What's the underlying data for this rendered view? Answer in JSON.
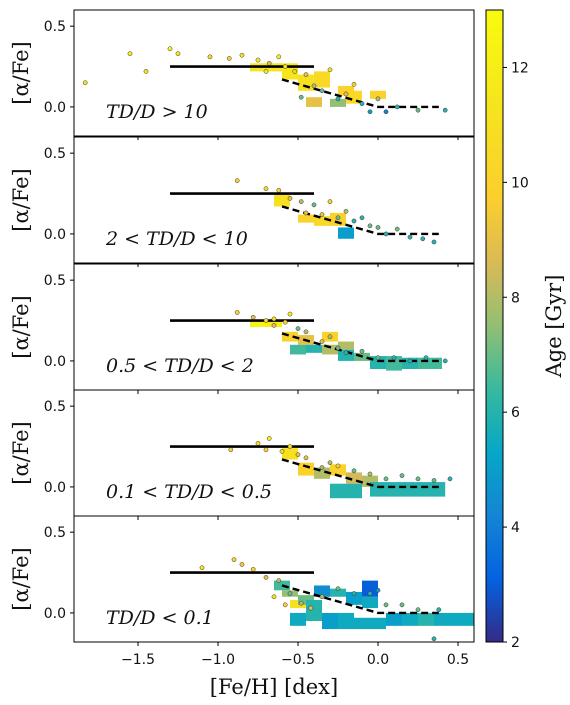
{
  "chart_data": {
    "type": "scatter",
    "xlabel": "[Fe/H] [dex]",
    "ylabel": "[α/Fe]",
    "xlim": [
      -1.9,
      0.6
    ],
    "ylim": [
      -0.18,
      0.6
    ],
    "xticks": [
      -1.5,
      -1.0,
      -0.5,
      0.0,
      0.5
    ],
    "xtick_labels": [
      "−1.5",
      "−1.0",
      "−0.5",
      "0.0",
      "0.5"
    ],
    "yticks": [
      0.0,
      0.5
    ],
    "ytick_labels": [
      "0.0",
      "0.5"
    ],
    "colorbar": {
      "label": "Age [Gyr]",
      "range": [
        2,
        13
      ],
      "ticks": [
        2,
        4,
        6,
        8,
        10,
        12
      ],
      "tick_labels": [
        "2",
        "4",
        "6",
        "8",
        "10",
        "12"
      ],
      "colormap": "parula"
    },
    "reference_lines": {
      "solid": {
        "x": [
          -1.3,
          -0.4
        ],
        "y": [
          0.25,
          0.25
        ]
      },
      "dashed": {
        "x": [
          -0.6,
          0.0,
          0.38
        ],
        "y": [
          0.17,
          0.0,
          0.0
        ]
      }
    },
    "panels": [
      {
        "label": "TD/D > 10",
        "points": [
          [
            -1.83,
            0.15,
            11
          ],
          [
            -1.55,
            0.33,
            12
          ],
          [
            -1.3,
            0.36,
            12.5
          ],
          [
            -1.25,
            0.33,
            11.5
          ],
          [
            -1.45,
            0.22,
            11
          ],
          [
            -1.05,
            0.31,
            10.5
          ],
          [
            -0.93,
            0.3,
            10
          ],
          [
            -0.85,
            0.32,
            11
          ],
          [
            -0.75,
            0.29,
            12
          ],
          [
            -0.68,
            0.27,
            9
          ],
          [
            -0.62,
            0.31,
            12
          ],
          [
            -0.58,
            0.25,
            11
          ],
          [
            -0.52,
            0.22,
            10
          ],
          [
            -0.45,
            0.2,
            9
          ],
          [
            -0.4,
            0.13,
            8
          ],
          [
            -0.35,
            0.1,
            7
          ],
          [
            -0.3,
            0.23,
            11
          ],
          [
            -0.25,
            0.05,
            6
          ],
          [
            -0.2,
            0.08,
            9
          ],
          [
            -0.15,
            0.14,
            10
          ],
          [
            -0.1,
            0.02,
            6
          ],
          [
            -0.05,
            -0.03,
            5
          ],
          [
            0.0,
            0.05,
            8
          ],
          [
            0.05,
            -0.03,
            4
          ],
          [
            0.12,
            0.0,
            6
          ],
          [
            0.25,
            -0.02,
            7
          ],
          [
            0.42,
            -0.02,
            6
          ],
          [
            -0.48,
            0.06,
            7
          ],
          [
            -0.7,
            0.22,
            12
          ]
        ],
        "boxes": [
          [
            -0.8,
            -0.6,
            0.22,
            0.27,
            11.5
          ],
          [
            -0.6,
            -0.5,
            0.17,
            0.27,
            11.5
          ],
          [
            -0.5,
            -0.4,
            0.1,
            0.2,
            11
          ],
          [
            -0.4,
            -0.3,
            0.12,
            0.22,
            10.5
          ],
          [
            -0.25,
            -0.15,
            0.07,
            0.13,
            10
          ],
          [
            -0.45,
            -0.35,
            0.0,
            0.06,
            9
          ],
          [
            -0.2,
            -0.1,
            0.02,
            0.1,
            10.5
          ],
          [
            -0.05,
            0.05,
            0.05,
            0.1,
            10
          ],
          [
            -0.3,
            -0.2,
            0.0,
            0.05,
            7.5
          ]
        ]
      },
      {
        "label": "2 < TD/D < 10",
        "points": [
          [
            -0.88,
            0.33,
            10
          ],
          [
            -0.7,
            0.28,
            10.5
          ],
          [
            -0.62,
            0.27,
            10
          ],
          [
            -0.55,
            0.22,
            9
          ],
          [
            -0.48,
            0.2,
            8
          ],
          [
            -0.4,
            0.18,
            7
          ],
          [
            -0.35,
            0.12,
            9
          ],
          [
            -0.3,
            0.2,
            10
          ],
          [
            -0.25,
            0.1,
            7
          ],
          [
            -0.2,
            0.14,
            8
          ],
          [
            -0.15,
            0.08,
            6
          ],
          [
            -0.1,
            0.1,
            6
          ],
          [
            -0.05,
            0.05,
            7
          ],
          [
            0.0,
            0.04,
            7
          ],
          [
            0.05,
            0.0,
            6
          ],
          [
            0.12,
            0.03,
            7
          ],
          [
            0.2,
            -0.02,
            6
          ],
          [
            0.28,
            -0.03,
            6
          ],
          [
            0.35,
            -0.05,
            6
          ],
          [
            -0.45,
            0.13,
            9
          ]
        ],
        "boxes": [
          [
            -0.65,
            -0.55,
            0.17,
            0.25,
            11
          ],
          [
            -0.5,
            -0.4,
            0.07,
            0.12,
            10
          ],
          [
            -0.4,
            -0.3,
            0.05,
            0.11,
            10.5
          ],
          [
            -0.3,
            -0.2,
            0.05,
            0.13,
            10
          ],
          [
            -0.25,
            -0.15,
            -0.03,
            0.04,
            5
          ]
        ]
      },
      {
        "label": "0.5 < TD/D < 2",
        "points": [
          [
            -0.88,
            0.3,
            10
          ],
          [
            -0.78,
            0.27,
            9
          ],
          [
            -0.7,
            0.25,
            10.5
          ],
          [
            -0.65,
            0.22,
            9
          ],
          [
            -0.58,
            0.24,
            10
          ],
          [
            -0.5,
            0.2,
            7
          ],
          [
            -0.45,
            0.18,
            8
          ],
          [
            -0.35,
            0.12,
            9
          ],
          [
            -0.3,
            0.15,
            8
          ],
          [
            -0.25,
            0.08,
            7
          ],
          [
            -0.2,
            0.05,
            6
          ],
          [
            -0.1,
            0.06,
            7
          ],
          [
            0.0,
            0.02,
            7
          ],
          [
            0.1,
            0.02,
            6
          ],
          [
            0.2,
            0.0,
            6
          ],
          [
            0.3,
            0.02,
            6
          ],
          [
            0.42,
            0.0,
            6
          ],
          [
            -0.55,
            0.29,
            12
          ],
          [
            -0.65,
            0.26,
            11
          ]
        ],
        "boxes": [
          [
            -0.8,
            -0.7,
            0.21,
            0.25,
            12.5
          ],
          [
            -0.7,
            -0.6,
            0.21,
            0.25,
            12
          ],
          [
            -0.6,
            -0.5,
            0.12,
            0.18,
            10
          ],
          [
            -0.5,
            -0.4,
            0.1,
            0.16,
            9
          ],
          [
            -0.45,
            -0.35,
            0.05,
            0.1,
            6
          ],
          [
            -0.35,
            -0.25,
            0.04,
            0.1,
            8
          ],
          [
            -0.25,
            -0.15,
            0.0,
            0.07,
            6
          ],
          [
            -0.15,
            -0.05,
            0.0,
            0.05,
            7
          ],
          [
            -0.05,
            0.05,
            -0.05,
            0.03,
            6
          ],
          [
            0.05,
            0.15,
            -0.06,
            0.03,
            6.5
          ],
          [
            0.15,
            0.25,
            -0.05,
            0.02,
            6
          ],
          [
            0.25,
            0.4,
            -0.05,
            0.02,
            6.5
          ],
          [
            -0.55,
            -0.45,
            0.04,
            0.1,
            6.5
          ],
          [
            -0.35,
            -0.25,
            0.12,
            0.18,
            10
          ],
          [
            -0.25,
            -0.15,
            0.07,
            0.12,
            8
          ]
        ]
      },
      {
        "label": "0.1 < TD/D < 0.5",
        "points": [
          [
            -0.92,
            0.23,
            10
          ],
          [
            -0.75,
            0.27,
            11
          ],
          [
            -0.7,
            0.23,
            10
          ],
          [
            -0.6,
            0.22,
            11
          ],
          [
            -0.5,
            0.2,
            9
          ],
          [
            -0.45,
            0.18,
            9
          ],
          [
            -0.35,
            0.12,
            8
          ],
          [
            -0.3,
            0.15,
            8
          ],
          [
            -0.25,
            0.13,
            10
          ],
          [
            -0.15,
            0.1,
            7
          ],
          [
            -0.05,
            0.08,
            8
          ],
          [
            0.05,
            0.05,
            7
          ],
          [
            0.15,
            0.07,
            7
          ],
          [
            0.25,
            0.05,
            7
          ],
          [
            0.35,
            0.04,
            7
          ],
          [
            0.45,
            0.05,
            6
          ],
          [
            -0.68,
            0.3,
            12
          ],
          [
            -0.55,
            0.25,
            11
          ]
        ],
        "boxes": [
          [
            -0.6,
            -0.5,
            0.17,
            0.24,
            11
          ],
          [
            -0.5,
            -0.4,
            0.07,
            0.15,
            10
          ],
          [
            -0.4,
            -0.3,
            0.05,
            0.12,
            8
          ],
          [
            -0.3,
            -0.2,
            0.07,
            0.14,
            10
          ],
          [
            -0.2,
            -0.1,
            0.02,
            0.09,
            8.5
          ],
          [
            -0.1,
            0.0,
            0.0,
            0.07,
            8
          ],
          [
            -0.05,
            0.15,
            -0.06,
            0.03,
            6
          ],
          [
            0.15,
            0.3,
            -0.06,
            0.03,
            6
          ],
          [
            0.3,
            0.42,
            -0.06,
            0.03,
            6
          ],
          [
            -0.3,
            -0.1,
            -0.07,
            0.02,
            6
          ]
        ]
      },
      {
        "label": "TD/D < 0.1",
        "points": [
          [
            -1.1,
            0.28,
            11
          ],
          [
            -0.9,
            0.33,
            10
          ],
          [
            -0.85,
            0.3,
            9.5
          ],
          [
            -0.78,
            0.27,
            10
          ],
          [
            -0.7,
            0.22,
            9
          ],
          [
            -0.62,
            0.2,
            8
          ],
          [
            -0.55,
            0.12,
            7
          ],
          [
            -0.48,
            0.06,
            8
          ],
          [
            -0.42,
            0.03,
            9
          ],
          [
            -0.35,
            0.1,
            8
          ],
          [
            -0.25,
            0.15,
            7
          ],
          [
            -0.15,
            0.12,
            6
          ],
          [
            -0.05,
            0.12,
            6
          ],
          [
            0.05,
            0.05,
            7
          ],
          [
            0.15,
            0.05,
            7
          ],
          [
            0.25,
            0.02,
            7
          ],
          [
            0.38,
            0.02,
            6
          ],
          [
            -0.65,
            0.1,
            11
          ],
          [
            -0.58,
            0.05,
            10
          ],
          [
            0.35,
            -0.16,
            6
          ],
          [
            0.0,
            0.14,
            5
          ]
        ],
        "boxes": [
          [
            -0.65,
            -0.55,
            0.14,
            0.2,
            6.5
          ],
          [
            -0.6,
            -0.5,
            0.1,
            0.14,
            7.5
          ],
          [
            -0.55,
            -0.45,
            0.03,
            0.08,
            11
          ],
          [
            -0.5,
            -0.4,
            0.05,
            0.11,
            7
          ],
          [
            -0.4,
            -0.3,
            0.1,
            0.17,
            4.5
          ],
          [
            -0.3,
            -0.2,
            0.1,
            0.15,
            6
          ],
          [
            -0.2,
            -0.1,
            0.05,
            0.13,
            5
          ],
          [
            -0.1,
            0.0,
            0.03,
            0.1,
            5.5
          ],
          [
            -0.1,
            0.0,
            0.1,
            0.2,
            3
          ],
          [
            -0.55,
            -0.45,
            -0.08,
            0.0,
            5.5
          ],
          [
            -0.45,
            -0.35,
            -0.05,
            0.03,
            6
          ],
          [
            -0.35,
            -0.25,
            -0.1,
            0.0,
            5
          ],
          [
            -0.25,
            -0.15,
            -0.1,
            0.0,
            5.5
          ],
          [
            -0.15,
            -0.05,
            -0.1,
            -0.03,
            5.5
          ],
          [
            -0.05,
            0.05,
            -0.1,
            -0.03,
            5.5
          ],
          [
            0.05,
            0.15,
            -0.08,
            0.0,
            5
          ],
          [
            0.15,
            0.25,
            -0.08,
            0.0,
            5.5
          ],
          [
            0.25,
            0.35,
            -0.08,
            0.0,
            6
          ],
          [
            0.35,
            0.45,
            -0.08,
            0.0,
            5.5
          ],
          [
            0.45,
            0.6,
            -0.08,
            0.0,
            5.5
          ],
          [
            -0.45,
            -0.35,
            0.02,
            0.08,
            6
          ]
        ]
      }
    ]
  }
}
